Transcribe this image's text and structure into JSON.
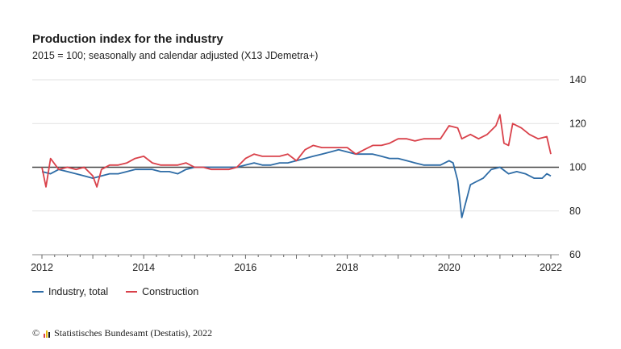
{
  "title": "Production index for the industry",
  "subtitle": "2015 = 100; seasonally and calendar adjusted (X13 JDemetra+)",
  "source": "Statistisches Bundesamt (Destatis), 2022",
  "copyright": "©",
  "colors": {
    "industry": "#2e6ca6",
    "construction": "#d9414a",
    "grid": "#e2e2e2",
    "baseline": "#444444"
  },
  "chart_data": {
    "type": "line",
    "title": "Production index for the industry",
    "subtitle": "2015 = 100; seasonally and calendar adjusted (X13 JDemetra+)",
    "xlabel": "",
    "ylabel": "",
    "xlim": [
      2012,
      2022
    ],
    "ylim": [
      60,
      140
    ],
    "yticks": [
      "140",
      "120",
      "100",
      "80",
      "60"
    ],
    "xticks": [
      "2012",
      "2014",
      "2016",
      "2018",
      "2020",
      "2022"
    ],
    "reference_line": 100,
    "grid": true,
    "legend_position": "bottom-left",
    "series": [
      {
        "name": "Industry, total",
        "color": "#2e6ca6",
        "points": [
          [
            2012.0,
            98
          ],
          [
            2012.17,
            97
          ],
          [
            2012.33,
            99
          ],
          [
            2012.5,
            98
          ],
          [
            2012.67,
            97
          ],
          [
            2012.83,
            96
          ],
          [
            2013.0,
            95
          ],
          [
            2013.17,
            96
          ],
          [
            2013.33,
            97
          ],
          [
            2013.5,
            97
          ],
          [
            2013.67,
            98
          ],
          [
            2013.83,
            99
          ],
          [
            2014.0,
            99
          ],
          [
            2014.17,
            99
          ],
          [
            2014.33,
            98
          ],
          [
            2014.5,
            98
          ],
          [
            2014.67,
            97
          ],
          [
            2014.83,
            99
          ],
          [
            2015.0,
            100
          ],
          [
            2015.17,
            100
          ],
          [
            2015.33,
            100
          ],
          [
            2015.5,
            100
          ],
          [
            2015.67,
            100
          ],
          [
            2015.83,
            100
          ],
          [
            2016.0,
            101
          ],
          [
            2016.17,
            102
          ],
          [
            2016.33,
            101
          ],
          [
            2016.5,
            101
          ],
          [
            2016.67,
            102
          ],
          [
            2016.83,
            102
          ],
          [
            2017.0,
            103
          ],
          [
            2017.17,
            104
          ],
          [
            2017.33,
            105
          ],
          [
            2017.5,
            106
          ],
          [
            2017.67,
            107
          ],
          [
            2017.83,
            108
          ],
          [
            2018.0,
            107
          ],
          [
            2018.17,
            106
          ],
          [
            2018.33,
            106
          ],
          [
            2018.5,
            106
          ],
          [
            2018.67,
            105
          ],
          [
            2018.83,
            104
          ],
          [
            2019.0,
            104
          ],
          [
            2019.17,
            103
          ],
          [
            2019.33,
            102
          ],
          [
            2019.5,
            101
          ],
          [
            2019.67,
            101
          ],
          [
            2019.83,
            101
          ],
          [
            2020.0,
            103
          ],
          [
            2020.08,
            102
          ],
          [
            2020.17,
            94
          ],
          [
            2020.25,
            77
          ],
          [
            2020.33,
            84
          ],
          [
            2020.42,
            92
          ],
          [
            2020.5,
            93
          ],
          [
            2020.67,
            95
          ],
          [
            2020.83,
            99
          ],
          [
            2021.0,
            100
          ],
          [
            2021.17,
            97
          ],
          [
            2021.33,
            98
          ],
          [
            2021.5,
            97
          ],
          [
            2021.67,
            95
          ],
          [
            2021.83,
            95
          ],
          [
            2021.92,
            97
          ],
          [
            2022.0,
            96
          ]
        ]
      },
      {
        "name": "Construction",
        "color": "#d9414a",
        "points": [
          [
            2012.0,
            100
          ],
          [
            2012.08,
            91
          ],
          [
            2012.17,
            104
          ],
          [
            2012.33,
            99
          ],
          [
            2012.5,
            100
          ],
          [
            2012.67,
            99
          ],
          [
            2012.83,
            100
          ],
          [
            2013.0,
            96
          ],
          [
            2013.08,
            91
          ],
          [
            2013.17,
            99
          ],
          [
            2013.33,
            101
          ],
          [
            2013.5,
            101
          ],
          [
            2013.67,
            102
          ],
          [
            2013.83,
            104
          ],
          [
            2014.0,
            105
          ],
          [
            2014.17,
            102
          ],
          [
            2014.33,
            101
          ],
          [
            2014.5,
            101
          ],
          [
            2014.67,
            101
          ],
          [
            2014.83,
            102
          ],
          [
            2015.0,
            100
          ],
          [
            2015.17,
            100
          ],
          [
            2015.33,
            99
          ],
          [
            2015.5,
            99
          ],
          [
            2015.67,
            99
          ],
          [
            2015.83,
            100
          ],
          [
            2016.0,
            104
          ],
          [
            2016.17,
            106
          ],
          [
            2016.33,
            105
          ],
          [
            2016.5,
            105
          ],
          [
            2016.67,
            105
          ],
          [
            2016.83,
            106
          ],
          [
            2017.0,
            103
          ],
          [
            2017.17,
            108
          ],
          [
            2017.33,
            110
          ],
          [
            2017.5,
            109
          ],
          [
            2017.67,
            109
          ],
          [
            2017.83,
            109
          ],
          [
            2018.0,
            109
          ],
          [
            2018.17,
            106
          ],
          [
            2018.33,
            108
          ],
          [
            2018.5,
            110
          ],
          [
            2018.67,
            110
          ],
          [
            2018.83,
            111
          ],
          [
            2019.0,
            113
          ],
          [
            2019.17,
            113
          ],
          [
            2019.33,
            112
          ],
          [
            2019.5,
            113
          ],
          [
            2019.67,
            113
          ],
          [
            2019.83,
            113
          ],
          [
            2020.0,
            119
          ],
          [
            2020.17,
            118
          ],
          [
            2020.25,
            113
          ],
          [
            2020.42,
            115
          ],
          [
            2020.58,
            113
          ],
          [
            2020.75,
            115
          ],
          [
            2020.92,
            119
          ],
          [
            2021.0,
            124
          ],
          [
            2021.08,
            111
          ],
          [
            2021.17,
            110
          ],
          [
            2021.25,
            120
          ],
          [
            2021.42,
            118
          ],
          [
            2021.58,
            115
          ],
          [
            2021.75,
            113
          ],
          [
            2021.92,
            114
          ],
          [
            2022.0,
            106
          ]
        ]
      }
    ]
  }
}
